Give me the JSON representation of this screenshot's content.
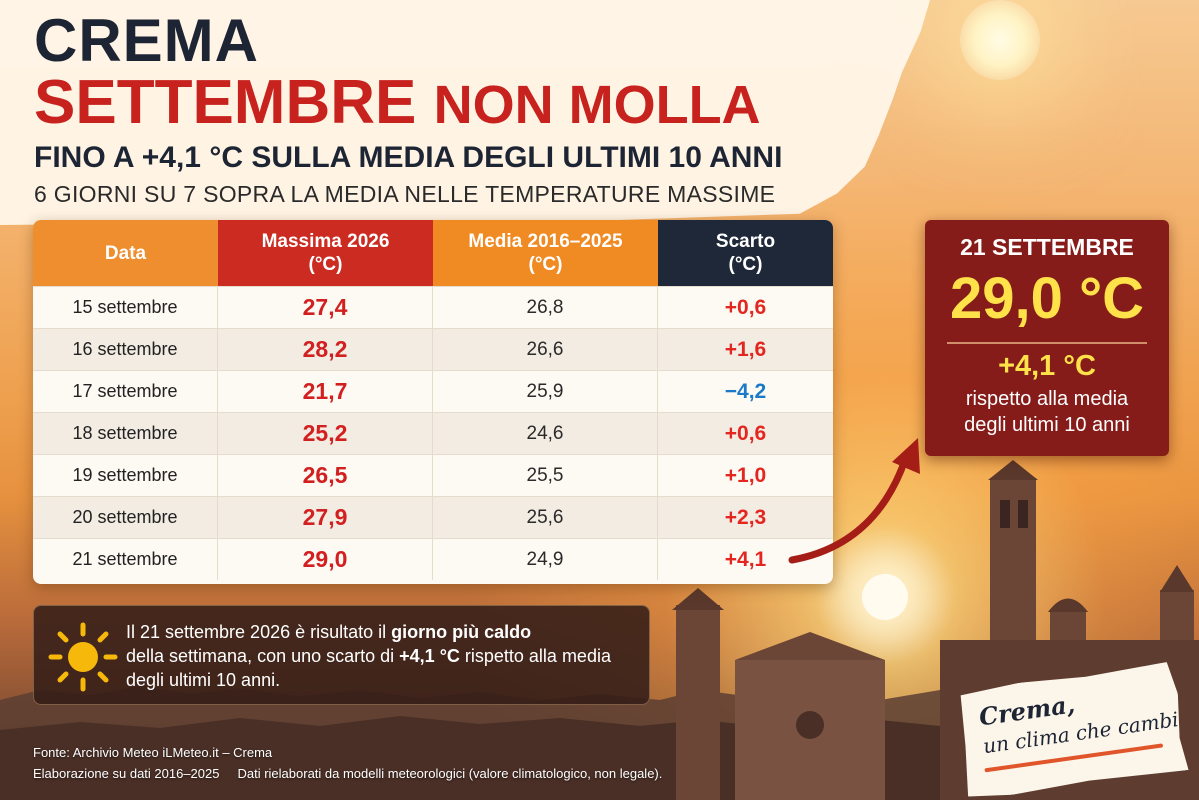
{
  "header": {
    "city": "CREMA",
    "headline_part1": "SETTEMBRE",
    "headline_part2": "NON MOLLA",
    "subtitle": "FINO A +4,1 °C SULLA MEDIA DEGLI ULTIMI 10 ANNI",
    "subtitle2": "6 GIORNI SU 7 SOPRA LA MEDIA NELLE TEMPERATURE MASSIME"
  },
  "table": {
    "headers": {
      "date": "Data",
      "max_l1": "Massima 2026",
      "max_l2": "(°C)",
      "avg_l1": "Media 2016–2025",
      "avg_l2": "(°C)",
      "diff_l1": "Scarto",
      "diff_l2": "(°C)"
    },
    "rows": [
      {
        "date": "15 settembre",
        "max": "27,4",
        "avg": "26,8",
        "diff": "+0,6"
      },
      {
        "date": "16 settembre",
        "max": "28,2",
        "avg": "26,6",
        "diff": "+1,6"
      },
      {
        "date": "17 settembre",
        "max": "21,7",
        "avg": "25,9",
        "diff": "−4,2"
      },
      {
        "date": "18 settembre",
        "max": "25,2",
        "avg": "24,6",
        "diff": "+0,6"
      },
      {
        "date": "19 settembre",
        "max": "26,5",
        "avg": "25,5",
        "diff": "+1,0"
      },
      {
        "date": "20 settembre",
        "max": "27,9",
        "avg": "25,6",
        "diff": "+2,3"
      },
      {
        "date": "21 settembre",
        "max": "29,0",
        "avg": "24,9",
        "diff": "+4,1"
      }
    ]
  },
  "highlight": {
    "date": "21 SETTEMBRE",
    "temp": "29,0 °C",
    "delta": "+4,1 °C",
    "text_l1": "rispetto alla media",
    "text_l2": "degli ultimi 10 anni"
  },
  "info": {
    "part1": "Il 21 settembre 2026 è risultato il ",
    "bold1": "giorno più caldo",
    "part2": "della settimana, con uno scarto di ",
    "bold2": "+4,1 °C",
    "part3": " rispetto alla media",
    "part4": "degli ultimi 10 anni."
  },
  "footer": {
    "source": "Fonte: Archivio Meteo iLMeteo.it – Crema",
    "elab": "Elaborazione su dati 2016–2025",
    "note": "Dati rielaborati da modelli meteorologici (valore climatologico, non legale)."
  },
  "stamp": {
    "line1": "Crema,",
    "line2": "un clima che cambia"
  },
  "icons": {
    "sun": "sun-icon",
    "arrow": "arrow-icon"
  },
  "colors": {
    "red": "#c7221e",
    "orange": "#ee8e2e",
    "navy": "#1e2838",
    "yellow": "#ffe14a",
    "blue": "#1b7ac7"
  }
}
